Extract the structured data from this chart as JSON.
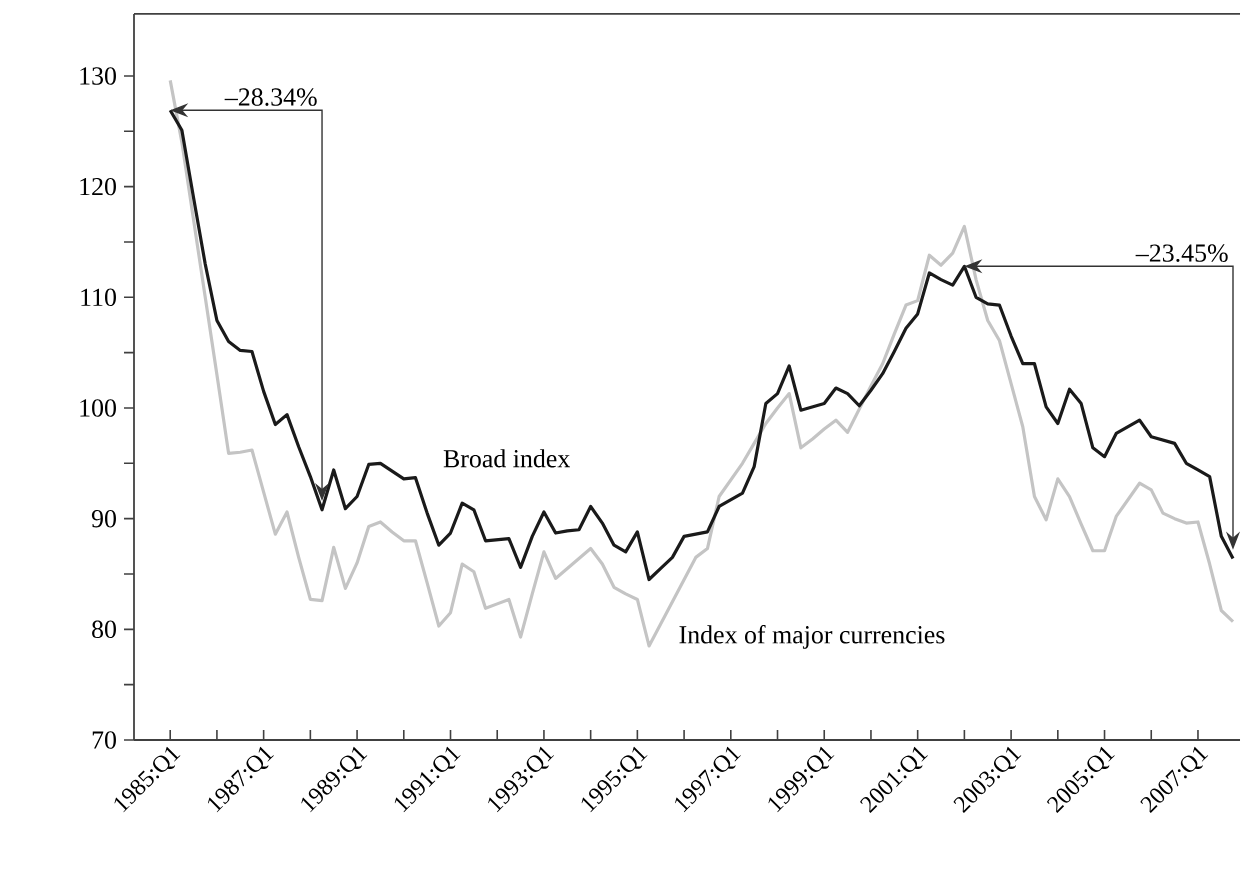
{
  "chart_data": {
    "type": "line",
    "categories": [
      "1985:Q1",
      null,
      null,
      null,
      null,
      null,
      null,
      null,
      "1987:Q1",
      null,
      null,
      null,
      null,
      null,
      null,
      null,
      "1989:Q1",
      null,
      null,
      null,
      null,
      null,
      null,
      null,
      "1991:Q1",
      null,
      null,
      null,
      null,
      null,
      null,
      null,
      "1993:Q1",
      null,
      null,
      null,
      null,
      null,
      null,
      null,
      "1995:Q1",
      null,
      null,
      null,
      null,
      null,
      null,
      null,
      "1997:Q1",
      null,
      null,
      null,
      null,
      null,
      null,
      null,
      "1999:Q1",
      null,
      null,
      null,
      null,
      null,
      null,
      null,
      "2001:Q1",
      null,
      null,
      null,
      null,
      null,
      null,
      null,
      "2003:Q1",
      null,
      null,
      null,
      null,
      null,
      null,
      null,
      "2005:Q1",
      null,
      null,
      null,
      null,
      null,
      null,
      null,
      "2007:Q1",
      null,
      null,
      null
    ],
    "series": [
      {
        "name": "Broad index",
        "color": "#1a1a1a",
        "values": [
          126.9,
          125.1,
          119,
          113,
          107.9,
          106.0,
          105.2,
          105.1,
          101.5,
          98.5,
          99.4,
          96.5,
          93.8,
          90.8,
          94.4,
          90.9,
          92.0,
          94.9,
          95.0,
          94.3,
          93.6,
          93.7,
          90.5,
          87.6,
          88.7,
          91.4,
          90.8,
          88.0,
          88.1,
          88.2,
          85.6,
          88.4,
          90.6,
          88.7,
          88.9,
          89.0,
          91.1,
          89.6,
          87.6,
          87.0,
          88.8,
          84.5,
          85.5,
          86.5,
          88.4,
          88.6,
          88.8,
          91.1,
          91.7,
          92.3,
          94.7,
          100.4,
          101.3,
          103.8,
          99.8,
          100.1,
          100.4,
          101.8,
          101.3,
          100.2,
          101.6,
          103.1,
          105.1,
          107.2,
          108.5,
          112.2,
          111.6,
          111.1,
          112.8,
          110.0,
          109.4,
          109.3,
          106.5,
          104.0,
          104.0,
          100.1,
          98.6,
          101.7,
          100.4,
          96.4,
          95.6,
          97.7,
          98.3,
          98.9,
          97.4,
          97.1,
          96.8,
          95.0,
          94.4,
          93.8,
          88.4,
          86.4
        ]
      },
      {
        "name": "Index of major currencies",
        "color": "#c4c4c4",
        "values": [
          129.6,
          124,
          117.0,
          110,
          103,
          95.9,
          96.0,
          96.2,
          92.4,
          88.6,
          90.6,
          86.5,
          82.7,
          82.6,
          87.4,
          83.7,
          86.0,
          89.3,
          89.7,
          88.8,
          88.0,
          88.0,
          84.2,
          80.3,
          81.5,
          85.9,
          85.2,
          81.9,
          82.3,
          82.7,
          79.3,
          83.2,
          87.0,
          84.6,
          85.5,
          86.4,
          87.3,
          85.9,
          83.8,
          83.2,
          82.7,
          78.5,
          80.5,
          82.5,
          84.5,
          86.5,
          87.3,
          92.0,
          93.5,
          95.0,
          96.8,
          98.6,
          100.0,
          101.3,
          96.4,
          97.2,
          98.1,
          98.9,
          97.8,
          99.9,
          102.0,
          104.0,
          106.7,
          109.3,
          109.7,
          113.8,
          112.9,
          114.0,
          116.4,
          111.6,
          107.9,
          106.1,
          102.2,
          98.3,
          92.0,
          89.9,
          93.6,
          92.0,
          89.5,
          87.1,
          87.1,
          90.2,
          91.7,
          93.2,
          92.6,
          90.5,
          90.0,
          89.6,
          89.7,
          85.9,
          81.7,
          80.7
        ]
      }
    ],
    "ylim": [
      70,
      135.6
    ],
    "yticks": [
      70,
      80,
      90,
      100,
      110,
      120,
      130
    ],
    "annotations": [
      "–28.34%",
      "–23.45%"
    ],
    "grid": false,
    "line_style": "solid",
    "marker": "none"
  }
}
